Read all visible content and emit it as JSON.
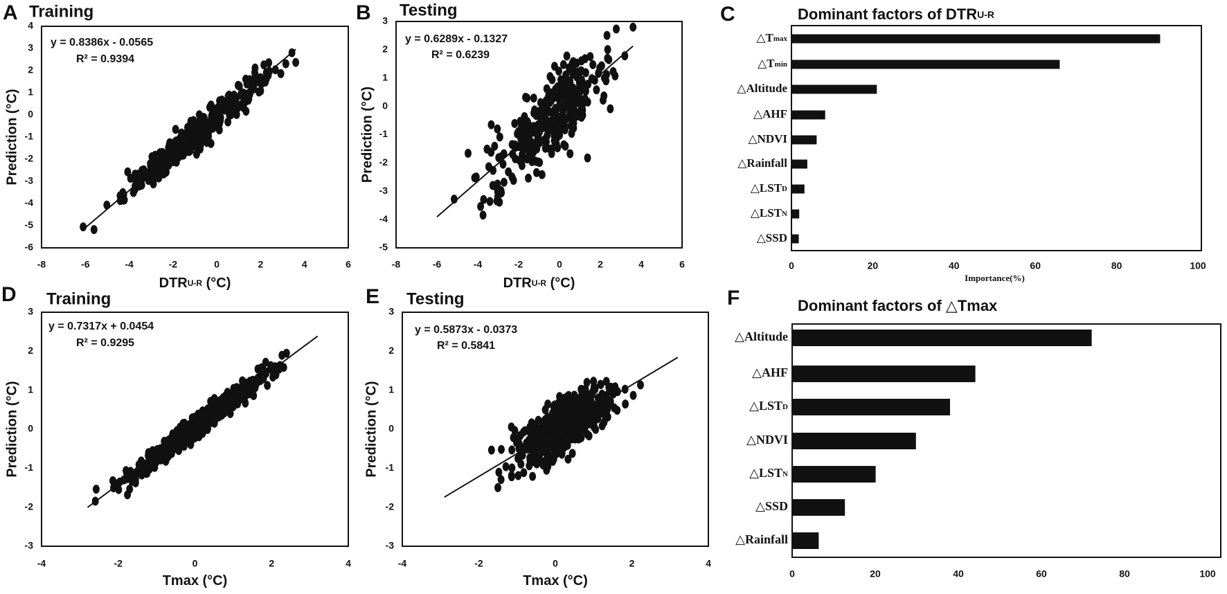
{
  "chart_data": [
    {
      "panel": "A",
      "type": "scatter",
      "title": "Training",
      "xlabel": {
        "main": "DTR",
        "sub": "U-R",
        "unit": " (°C)"
      },
      "ylabel": "Prediction (°C)",
      "xlim": [
        -8,
        6
      ],
      "ylim": [
        -6,
        4
      ],
      "xticks": [
        "-8",
        "-6",
        "-4",
        "-2",
        "0",
        "2",
        "4",
        "6"
      ],
      "yticks": [
        "4",
        "3",
        "2",
        "1",
        "0",
        "-1",
        "-2",
        "-3",
        "-4",
        "-5",
        "-6"
      ],
      "equation": "y = 0.8386x - 0.0565",
      "r2_label": "R² = 0.9394",
      "fit": {
        "slope": 0.8386,
        "intercept": -0.0565,
        "x_range": [
          -6.0,
          3.6
        ]
      },
      "points": {
        "n": 380,
        "x_mean": -1.0,
        "x_sd": 1.6,
        "x_range": [
          -6.1,
          3.6
        ],
        "residual_sd": 0.33
      }
    },
    {
      "panel": "B",
      "type": "scatter",
      "title": "Testing",
      "xlabel": {
        "main": "DTR",
        "sub": "U-R",
        "unit": " (°C)"
      },
      "ylabel": "Prediction (°C)",
      "xlim": [
        -8,
        6
      ],
      "ylim": [
        -5,
        3
      ],
      "xticks": [
        "-8",
        "-6",
        "-4",
        "-2",
        "0",
        "2",
        "4",
        "6"
      ],
      "yticks": [
        "3",
        "2",
        "1",
        "0",
        "-1",
        "-2",
        "-3",
        "-4",
        "-5"
      ],
      "equation": "y = 0.6289x - 0.1327",
      "r2_label": "R² = 0.6239",
      "fit": {
        "slope": 0.6289,
        "intercept": -0.1327,
        "x_range": [
          -6.0,
          3.6
        ]
      },
      "points": {
        "n": 320,
        "x_mean": -0.5,
        "x_sd": 1.5,
        "x_range": [
          -6.0,
          3.6
        ],
        "residual_sd": 0.72
      }
    },
    {
      "panel": "C",
      "type": "bar",
      "orientation": "horizontal",
      "title": {
        "main": "Dominant factors of DTR",
        "sub": "U-R"
      },
      "xlabel": "Importance(%)",
      "xlim": [
        0,
        100
      ],
      "xticks": [
        "0",
        "20",
        "40",
        "60",
        "80",
        "100"
      ],
      "categories": [
        {
          "base": "△T",
          "sub": "max"
        },
        {
          "base": "△T",
          "sub": "min"
        },
        {
          "base": "△Altitude",
          "sub": ""
        },
        {
          "base": "△AHF",
          "sub": ""
        },
        {
          "base": "△NDVI",
          "sub": ""
        },
        {
          "base": "△Rainfall",
          "sub": ""
        },
        {
          "base": "△LST",
          "sub": "D"
        },
        {
          "base": "△LST",
          "sub": "N"
        },
        {
          "base": "△SSD",
          "sub": ""
        }
      ],
      "values": [
        90.7,
        66.0,
        21.0,
        8.3,
        6.2,
        3.9,
        3.2,
        1.9,
        1.8
      ]
    },
    {
      "panel": "D",
      "type": "scatter",
      "title": "Training",
      "xlabel": {
        "main": "Tmax",
        "sub": "",
        "unit": " (°C)"
      },
      "ylabel": "Prediction (°C)",
      "xlim": [
        -4,
        4
      ],
      "ylim": [
        -3,
        3
      ],
      "xticks": [
        "-4",
        "-2",
        "0",
        "2",
        "4"
      ],
      "yticks": [
        "3",
        "2",
        "1",
        "0",
        "-1",
        "-2",
        "-3"
      ],
      "equation": "y = 0.7317x + 0.0454",
      "r2_label": "R² = 0.9295",
      "fit": {
        "slope": 0.7317,
        "intercept": 0.0454,
        "x_range": [
          -2.8,
          3.2
        ]
      },
      "points": {
        "n": 650,
        "x_mean": 0.0,
        "x_sd": 0.9,
        "x_range": [
          -2.9,
          3.2
        ],
        "residual_sd": 0.14
      }
    },
    {
      "panel": "E",
      "type": "scatter",
      "title": "Testing",
      "xlabel": {
        "main": "Tmax",
        "sub": "",
        "unit": " (°C)"
      },
      "ylabel": "Prediction (°C)",
      "xlim": [
        -4,
        4
      ],
      "ylim": [
        -3,
        3
      ],
      "xticks": [
        "-4",
        "-2",
        "0",
        "2",
        "4"
      ],
      "yticks": [
        "3",
        "2",
        "1",
        "0",
        "-1",
        "-2",
        "-3"
      ],
      "equation": "y = 0.5873x - 0.0373",
      "r2_label": "R² = 0.5841",
      "fit": {
        "slope": 0.5873,
        "intercept": -0.0373,
        "x_range": [
          -2.9,
          3.2
        ]
      },
      "points": {
        "n": 520,
        "x_mean": 0.2,
        "x_sd": 0.6,
        "x_range": [
          -2.9,
          3.2
        ],
        "residual_sd": 0.33
      }
    },
    {
      "panel": "F",
      "type": "bar",
      "orientation": "horizontal",
      "title": {
        "main": "Dominant factors of △Tmax",
        "sub": ""
      },
      "xlabel": "",
      "xlim": [
        0,
        100
      ],
      "xticks": [
        "0",
        "20",
        "40",
        "60",
        "80",
        "100"
      ],
      "categories": [
        {
          "base": "△Altitude",
          "sub": ""
        },
        {
          "base": "△AHF",
          "sub": ""
        },
        {
          "base": "△LST",
          "sub": "D"
        },
        {
          "base": "△NDVI",
          "sub": ""
        },
        {
          "base": "△LST",
          "sub": "N"
        },
        {
          "base": "△SSD",
          "sub": ""
        },
        {
          "base": "△Rainfall",
          "sub": ""
        }
      ],
      "values": [
        72.1,
        44.1,
        38.0,
        29.8,
        20.1,
        12.7,
        6.4
      ]
    }
  ],
  "colors": {
    "ink": "#111111",
    "background": "#ffffff"
  }
}
